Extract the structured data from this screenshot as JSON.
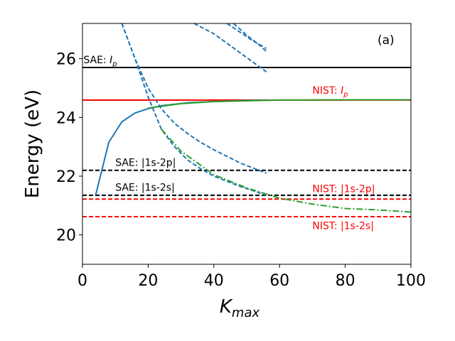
{
  "chart_data": {
    "type": "line",
    "panel_label": "(a)",
    "xlabel": "K",
    "xlabel_sub": "max",
    "ylabel": "Energy (eV)",
    "xlim": [
      0,
      100
    ],
    "ylim": [
      19,
      27.2
    ],
    "xticks": [
      0,
      20,
      40,
      60,
      80,
      100
    ],
    "yticks": [
      20,
      22,
      24,
      26
    ],
    "grid": false,
    "reference_lines": [
      {
        "label_prefix": "SAE: ",
        "label_italic": "I",
        "label_sub": "p",
        "y": 25.7,
        "color": "#000000",
        "style": "solid",
        "label_x": 0.3,
        "label_y": 25.85,
        "label_color": "#000000"
      },
      {
        "label_prefix": "NIST: ",
        "label_italic": "I",
        "label_sub": "p",
        "y": 24.59,
        "color": "#ff0000",
        "style": "solid",
        "label_x": 70,
        "label_y": 24.8,
        "label_color": "#ff0000"
      },
      {
        "label_prefix": "SAE: |1s-2p|",
        "y": 22.2,
        "color": "#000000",
        "style": "dashed",
        "label_x": 10,
        "label_y": 22.35,
        "label_color": "#000000"
      },
      {
        "label_prefix": "SAE: |1s-2s|",
        "y": 21.35,
        "color": "#000000",
        "style": "dashed",
        "label_x": 10,
        "label_y": 21.5,
        "label_color": "#000000"
      },
      {
        "label_prefix": "NIST: |1s-2p|",
        "y": 21.22,
        "color": "#ff0000",
        "style": "dashed",
        "label_x": 70,
        "label_y": 21.45,
        "label_color": "#ff0000"
      },
      {
        "label_prefix": "NIST: |1s-2s|",
        "y": 20.62,
        "color": "#ff0000",
        "style": "dashed",
        "label_x": 70,
        "label_y": 20.2,
        "label_color": "#ff0000"
      }
    ],
    "series": [
      {
        "color": "#1f77b4",
        "style": "solid",
        "points": [
          [
            4,
            21.35
          ],
          [
            8,
            23.15
          ],
          [
            12,
            23.85
          ],
          [
            16,
            24.15
          ],
          [
            20,
            24.3
          ],
          [
            24,
            24.4
          ],
          [
            28,
            24.45
          ],
          [
            32,
            24.5
          ],
          [
            36,
            24.52
          ],
          [
            40,
            24.54
          ],
          [
            48,
            24.57
          ],
          [
            56,
            24.59
          ]
        ]
      },
      {
        "color": "#2ca02c",
        "style": "solid",
        "points": [
          [
            20,
            24.32
          ],
          [
            30,
            24.47
          ],
          [
            40,
            24.54
          ],
          [
            56,
            24.58
          ],
          [
            60,
            24.59
          ],
          [
            80,
            24.6
          ],
          [
            100,
            24.6
          ]
        ]
      },
      {
        "color": "#1f77b4",
        "style": "dashed",
        "points": [
          [
            12,
            27.2
          ],
          [
            16,
            26.0
          ],
          [
            20,
            25.0
          ],
          [
            24,
            24.3
          ],
          [
            28,
            23.8
          ],
          [
            32,
            23.45
          ],
          [
            36,
            23.15
          ],
          [
            40,
            22.9
          ],
          [
            48,
            22.45
          ],
          [
            56,
            22.1
          ]
        ]
      },
      {
        "color": "#1f77b4",
        "style": "dashed",
        "points": [
          [
            12,
            27.2
          ],
          [
            16,
            26.0
          ],
          [
            20,
            24.7
          ],
          [
            24,
            23.6
          ],
          [
            28,
            23.0
          ],
          [
            32,
            22.55
          ],
          [
            36,
            22.25
          ],
          [
            40,
            22.0
          ],
          [
            48,
            21.65
          ],
          [
            56,
            21.35
          ]
        ]
      },
      {
        "color": "#1f77b4",
        "style": "dashed",
        "points": [
          [
            34,
            27.2
          ],
          [
            40,
            26.85
          ],
          [
            48,
            26.2
          ],
          [
            56,
            25.55
          ],
          [
            56,
            25.55
          ]
        ]
      },
      {
        "color": "#1f77b4",
        "style": "dashed",
        "points": [
          [
            44,
            27.2
          ],
          [
            48,
            26.9
          ],
          [
            52,
            26.6
          ],
          [
            56,
            26.35
          ]
        ]
      },
      {
        "color": "#1f77b4",
        "style": "dashed",
        "points": [
          [
            46,
            27.2
          ],
          [
            50,
            26.8
          ],
          [
            54,
            26.45
          ],
          [
            56,
            26.25
          ]
        ]
      },
      {
        "color": "#2ca02c",
        "style": "dashdot",
        "points": [
          [
            24,
            23.6
          ],
          [
            30,
            22.85
          ],
          [
            40,
            22.05
          ],
          [
            50,
            21.6
          ],
          [
            60,
            21.25
          ],
          [
            70,
            21.05
          ],
          [
            80,
            20.9
          ],
          [
            90,
            20.85
          ],
          [
            100,
            20.78
          ]
        ]
      }
    ]
  }
}
